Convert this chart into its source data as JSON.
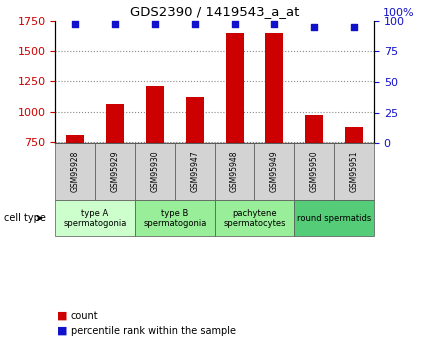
{
  "title": "GDS2390 / 1419543_a_at",
  "samples": [
    "GSM95928",
    "GSM95929",
    "GSM95930",
    "GSM95947",
    "GSM95948",
    "GSM95949",
    "GSM95950",
    "GSM95951"
  ],
  "counts": [
    810,
    1060,
    1210,
    1120,
    1650,
    1650,
    975,
    870
  ],
  "percentile_ranks": [
    97,
    97,
    97,
    97,
    97,
    97,
    95,
    95
  ],
  "ylim_left": [
    740,
    1750
  ],
  "ylim_right": [
    0,
    100
  ],
  "yticks_left": [
    750,
    1000,
    1250,
    1500,
    1750
  ],
  "yticks_right": [
    0,
    25,
    50,
    75,
    100
  ],
  "bar_color": "#cc0000",
  "dot_color": "#1111cc",
  "cell_type_label": "cell type",
  "legend_count_label": "count",
  "legend_pct_label": "percentile rank within the sample",
  "left_axis_color": "#cc0000",
  "right_axis_color": "#1111cc",
  "grid_color": "#888888",
  "cell_groups": [
    {
      "label": "type A\nspermatogonia",
      "start": 0,
      "end": 2,
      "color": "#ccffcc"
    },
    {
      "label": "type B\nspermatogonia",
      "start": 2,
      "end": 4,
      "color": "#99ee99"
    },
    {
      "label": "pachytene\nspermatocytes",
      "start": 4,
      "end": 6,
      "color": "#99ee99"
    },
    {
      "label": "round spermatids",
      "start": 6,
      "end": 8,
      "color": "#55cc77"
    }
  ]
}
